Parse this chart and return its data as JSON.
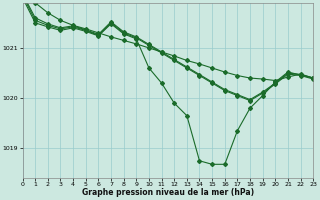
{
  "xlabel": "Graphe pression niveau de la mer (hPa)",
  "bg_color": "#cce8e0",
  "grid_color": "#99cccc",
  "line_color": "#1a6b2a",
  "marker": "D",
  "markersize": 2.0,
  "linewidth": 0.8,
  "xlim": [
    0,
    23
  ],
  "ylim": [
    1018.4,
    1021.9
  ],
  "yticks": [
    1019,
    1020,
    1021
  ],
  "xticks": [
    0,
    1,
    2,
    3,
    4,
    5,
    6,
    7,
    8,
    9,
    10,
    11,
    12,
    13,
    14,
    15,
    16,
    17,
    18,
    19,
    20,
    21,
    22,
    23
  ],
  "series": [
    [
      1022.1,
      1021.9,
      1021.7,
      1021.55,
      1021.45,
      1021.38,
      1021.3,
      1021.22,
      1021.15,
      1021.08,
      1021.0,
      1020.92,
      1020.84,
      1020.75,
      1020.68,
      1020.6,
      1020.52,
      1020.45,
      1020.4,
      1020.38,
      1020.35,
      1020.42,
      1020.48,
      1020.4
    ],
    [
      1022.05,
      1021.55,
      1021.45,
      1021.38,
      1021.42,
      1021.35,
      1021.25,
      1021.5,
      1021.3,
      1021.2,
      1021.05,
      1020.9,
      1020.75,
      1020.6,
      1020.45,
      1020.3,
      1020.15,
      1020.05,
      1019.95,
      1020.1,
      1020.28,
      1020.48,
      1020.45,
      1020.38
    ],
    [
      1022.08,
      1021.6,
      1021.48,
      1021.4,
      1021.44,
      1021.36,
      1021.27,
      1021.52,
      1021.32,
      1021.22,
      1021.07,
      1020.92,
      1020.77,
      1020.62,
      1020.47,
      1020.32,
      1020.17,
      1020.07,
      1019.97,
      1020.12,
      1020.3,
      1020.5,
      1020.47,
      1020.4
    ],
    [
      1022.0,
      1021.5,
      1021.42,
      1021.35,
      1021.4,
      1021.33,
      1021.24,
      1021.48,
      1021.28,
      1021.18,
      1020.6,
      1020.3,
      1019.9,
      1019.65,
      1018.75,
      1018.68,
      1018.68,
      1019.35,
      1019.8,
      1020.05,
      1020.32,
      1020.52,
      1020.46,
      1020.4
    ]
  ]
}
